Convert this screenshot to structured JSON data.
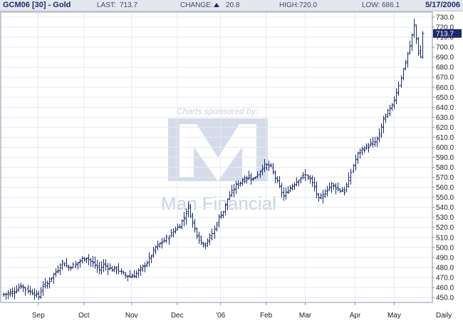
{
  "header": {
    "ticker": "GCM06 [30] - Gold",
    "last_label": "LAST:",
    "last_value": "713.7",
    "change_label": "CHANGE:",
    "change_value": "20.8",
    "change_direction": "up-arrow-icon",
    "high_label": "HIGH:",
    "high_value": "720.0",
    "low_label": "LOW:",
    "low_value": "686.1",
    "date": "5/17/2006"
  },
  "watermark": {
    "sponsor_text": "Charts sponsored by:",
    "company": "Man Financial"
  },
  "chart_data": {
    "type": "ohlc",
    "interval_label": "Daily",
    "last_price_label": "713.7",
    "ylim": [
      445,
      735
    ],
    "y_ticks": [
      450,
      460,
      470,
      480,
      490,
      500,
      510,
      520,
      530,
      540,
      550,
      560,
      570,
      580,
      590,
      600,
      610,
      620,
      630,
      640,
      650,
      660,
      670,
      680,
      690,
      700,
      710,
      720,
      730
    ],
    "x_tick_labels": [
      {
        "label": "Sep",
        "index": 16
      },
      {
        "label": "Oct",
        "index": 37
      },
      {
        "label": "Nov",
        "index": 59
      },
      {
        "label": "Dec",
        "index": 80
      },
      {
        "label": "'06",
        "index": 100
      },
      {
        "label": "Feb",
        "index": 121
      },
      {
        "label": "Mar",
        "index": 139
      },
      {
        "label": "Apr",
        "index": 162
      },
      {
        "label": "May",
        "index": 180
      }
    ],
    "keypoints": [
      [
        0,
        453
      ],
      [
        5,
        456
      ],
      [
        8,
        462
      ],
      [
        10,
        458
      ],
      [
        13,
        455
      ],
      [
        16,
        451
      ],
      [
        18,
        462
      ],
      [
        20,
        464
      ],
      [
        22,
        470
      ],
      [
        25,
        478
      ],
      [
        27,
        485
      ],
      [
        30,
        480
      ],
      [
        33,
        483
      ],
      [
        36,
        488
      ],
      [
        38,
        490
      ],
      [
        40,
        486
      ],
      [
        42,
        482
      ],
      [
        44,
        478
      ],
      [
        46,
        483
      ],
      [
        48,
        480
      ],
      [
        50,
        478
      ],
      [
        52,
        479
      ],
      [
        55,
        473
      ],
      [
        58,
        471
      ],
      [
        60,
        472
      ],
      [
        63,
        478
      ],
      [
        66,
        485
      ],
      [
        68,
        492
      ],
      [
        70,
        500
      ],
      [
        73,
        505
      ],
      [
        76,
        511
      ],
      [
        79,
        518
      ],
      [
        81,
        522
      ],
      [
        83,
        530
      ],
      [
        85,
        540
      ],
      [
        87,
        525
      ],
      [
        89,
        513
      ],
      [
        91,
        505
      ],
      [
        93,
        503
      ],
      [
        95,
        510
      ],
      [
        97,
        518
      ],
      [
        99,
        530
      ],
      [
        101,
        536
      ],
      [
        103,
        548
      ],
      [
        105,
        555
      ],
      [
        107,
        562
      ],
      [
        109,
        565
      ],
      [
        111,
        568
      ],
      [
        113,
        571
      ],
      [
        115,
        568
      ],
      [
        117,
        573
      ],
      [
        119,
        580
      ],
      [
        121,
        582
      ],
      [
        123,
        580
      ],
      [
        125,
        570
      ],
      [
        127,
        560
      ],
      [
        129,
        551
      ],
      [
        131,
        557
      ],
      [
        133,
        562
      ],
      [
        135,
        566
      ],
      [
        137,
        570
      ],
      [
        139,
        572
      ],
      [
        141,
        568
      ],
      [
        143,
        560
      ],
      [
        145,
        548
      ],
      [
        147,
        552
      ],
      [
        149,
        558
      ],
      [
        151,
        563
      ],
      [
        153,
        560
      ],
      [
        155,
        557
      ],
      [
        157,
        556
      ],
      [
        159,
        568
      ],
      [
        161,
        582
      ],
      [
        163,
        593
      ],
      [
        165,
        598
      ],
      [
        167,
        600
      ],
      [
        169,
        603
      ],
      [
        171,
        605
      ],
      [
        173,
        612
      ],
      [
        175,
        628
      ],
      [
        177,
        635
      ],
      [
        179,
        641
      ],
      [
        181,
        655
      ],
      [
        183,
        670
      ],
      [
        185,
        685
      ],
      [
        187,
        701
      ],
      [
        189,
        722
      ],
      [
        191,
        695
      ],
      [
        192,
        690
      ],
      [
        193,
        714
      ]
    ]
  }
}
